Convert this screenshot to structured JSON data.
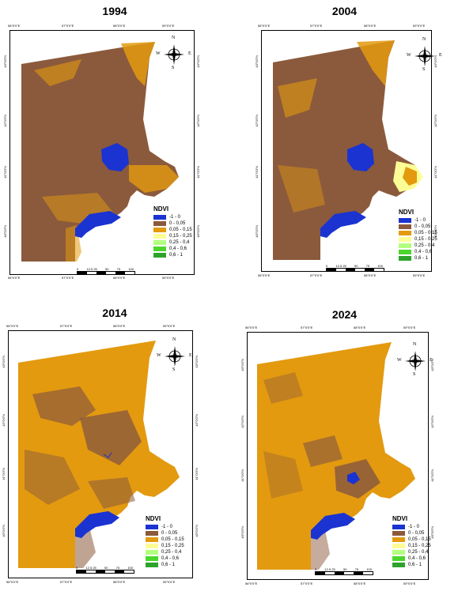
{
  "colors": {
    "water": "#1a33d1",
    "bare": "#8b5a3c",
    "sparse": "#e39a0f",
    "light_green": "#fdfd96",
    "pale_green": "#b3ff80",
    "mid_green": "#4cd62c",
    "dark_green": "#2ea32b"
  },
  "legend": {
    "title": "NDVI",
    "items": [
      {
        "label": "-1 - 0",
        "color": "#1a33d1"
      },
      {
        "label": "0 - 0,05",
        "color": "#8b5a3c"
      },
      {
        "label": "0,05 - 0,15",
        "color": "#e39a0f"
      },
      {
        "label": "0,15 - 0,25",
        "color": "#fdfd96"
      },
      {
        "label": "0,25 - 0,4",
        "color": "#b3ff80"
      },
      {
        "label": "0,4 - 0,6",
        "color": "#4cd62c"
      },
      {
        "label": "0,6 - 1",
        "color": "#2ea32b"
      }
    ]
  },
  "scale": {
    "labels": [
      "0",
      "12.5 25",
      "50",
      "75",
      "100"
    ],
    "unit": "km"
  },
  "compass": {
    "n": "N",
    "s": "S",
    "e": "E",
    "w": "W"
  },
  "lon_ticks": [
    "56°0'0\"E",
    "57°0'0\"E",
    "58°0'0\"E",
    "59°0'0\"E"
  ],
  "lat_ticks": [
    "43°0'0\"N",
    "42°0'0\"N",
    "41°0'0\"N",
    "40°0'0\"N"
  ],
  "panels": [
    {
      "year": "1994"
    },
    {
      "year": "2004"
    },
    {
      "year": "2014"
    },
    {
      "year": "2024"
    }
  ]
}
